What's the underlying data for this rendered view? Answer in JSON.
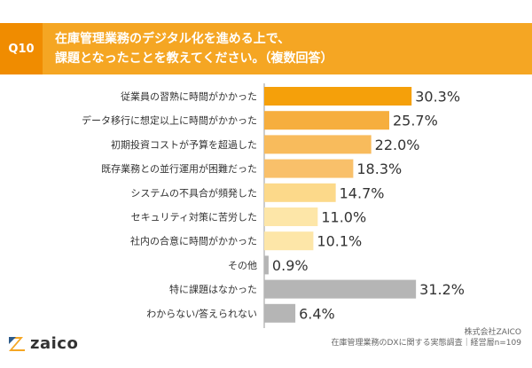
{
  "question": {
    "badge": "Q10",
    "line1": "在庫管理業務のデジタル化を進める上で、",
    "line2": "課題となったことを教えてください。（複数回答）"
  },
  "chart_data": {
    "type": "bar",
    "orientation": "horizontal",
    "categories": [
      "従業員の習熟に時間がかかった",
      "データ移行に想定以上に時間がかかった",
      "初期投資コストが予算を超過した",
      "既存業務との並行運用が困難だった",
      "システムの不具合が頻発した",
      "セキュリティ対策に苦労した",
      "社内の合意に時間がかかった",
      "その他",
      "特に課題はなかった",
      "わからない/答えられない"
    ],
    "values": [
      30.3,
      25.7,
      22.0,
      18.3,
      14.7,
      11.0,
      10.1,
      0.9,
      31.2,
      6.4
    ],
    "value_labels": [
      "30.3%",
      "25.7%",
      "22.0%",
      "18.3%",
      "14.7%",
      "11.0%",
      "10.1%",
      "0.9%",
      "31.2%",
      "6.4%"
    ],
    "bar_colors": [
      "#f5a00a",
      "#f6ae3e",
      "#f8bb5c",
      "#f9c06a",
      "#fcd98a",
      "#fde6a8",
      "#fde6a8",
      "#b5b5b5",
      "#b5b5b5",
      "#b5b5b5"
    ],
    "xlim": [
      0,
      35
    ],
    "grid": false,
    "legend": "none"
  },
  "logo": {
    "text": "zaico"
  },
  "source": {
    "line1": "株式会社ZAICO",
    "line2": "在庫管理業務のDXに関する実態調査｜経営層n=109"
  }
}
